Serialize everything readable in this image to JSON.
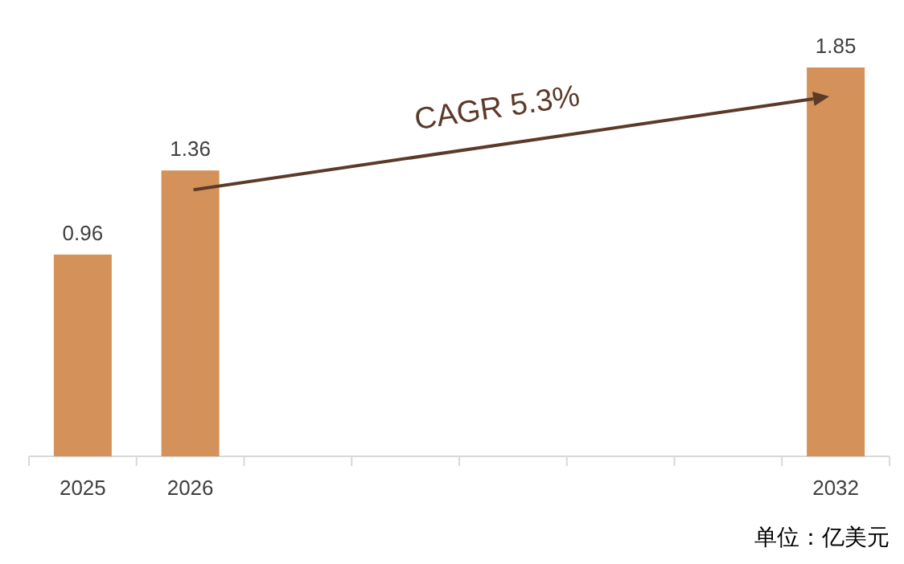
{
  "chart_data": {
    "type": "bar",
    "categories": [
      "2025",
      "2026",
      null,
      null,
      null,
      null,
      null,
      "2032"
    ],
    "values": [
      0.96,
      1.36,
      null,
      null,
      null,
      null,
      null,
      1.85
    ],
    "color": "#d4915a",
    "data_labels": true,
    "annotations": [
      "CAGR 5.3%",
      "单位：亿美元"
    ]
  }
}
